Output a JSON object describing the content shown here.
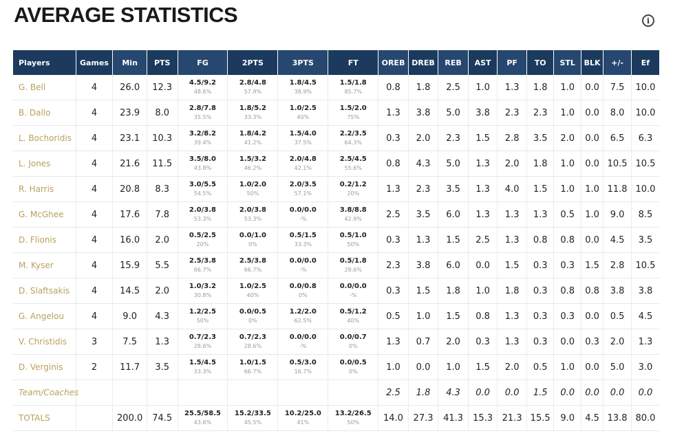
{
  "page": {
    "title": "AVERAGE STATISTICS",
    "info_icon": "info-icon"
  },
  "table": {
    "columns": [
      "Players",
      "Games",
      "Min",
      "PTS",
      "FG",
      "2PTS",
      "3PTS",
      "FT",
      "OREB",
      "DREB",
      "REB",
      "AST",
      "PF",
      "TO",
      "STL",
      "BLK",
      "+/-",
      "Ef"
    ],
    "rows": [
      {
        "player": "G. Bell",
        "games": "4",
        "min": "26.0",
        "pts": "12.3",
        "fg": {
          "v": "4.5/9.2",
          "p": "48.6%"
        },
        "p2": {
          "v": "2.8/4.8",
          "p": "57.9%"
        },
        "p3": {
          "v": "1.8/4.5",
          "p": "38.9%"
        },
        "ft": {
          "v": "1.5/1.8",
          "p": "85.7%"
        },
        "oreb": "0.8",
        "dreb": "1.8",
        "reb": "2.5",
        "ast": "1.0",
        "pf": "1.3",
        "to": "1.8",
        "stl": "1.0",
        "blk": "0.0",
        "pm": "7.5",
        "ef": "10.0"
      },
      {
        "player": "B. Dallo",
        "games": "4",
        "min": "23.9",
        "pts": "8.0",
        "fg": {
          "v": "2.8/7.8",
          "p": "35.5%"
        },
        "p2": {
          "v": "1.8/5.2",
          "p": "33.3%"
        },
        "p3": {
          "v": "1.0/2.5",
          "p": "40%"
        },
        "ft": {
          "v": "1.5/2.0",
          "p": "75%"
        },
        "oreb": "1.3",
        "dreb": "3.8",
        "reb": "5.0",
        "ast": "3.8",
        "pf": "2.3",
        "to": "2.3",
        "stl": "1.0",
        "blk": "0.0",
        "pm": "8.0",
        "ef": "10.0"
      },
      {
        "player": "L. Bochoridis",
        "games": "4",
        "min": "23.1",
        "pts": "10.3",
        "fg": {
          "v": "3.2/8.2",
          "p": "39.4%"
        },
        "p2": {
          "v": "1.8/4.2",
          "p": "41.2%"
        },
        "p3": {
          "v": "1.5/4.0",
          "p": "37.5%"
        },
        "ft": {
          "v": "2.2/3.5",
          "p": "64.3%"
        },
        "oreb": "0.3",
        "dreb": "2.0",
        "reb": "2.3",
        "ast": "1.5",
        "pf": "2.8",
        "to": "3.5",
        "stl": "2.0",
        "blk": "0.0",
        "pm": "6.5",
        "ef": "6.3"
      },
      {
        "player": "L. Jones",
        "games": "4",
        "min": "21.6",
        "pts": "11.5",
        "fg": {
          "v": "3.5/8.0",
          "p": "43.8%"
        },
        "p2": {
          "v": "1.5/3.2",
          "p": "46.2%"
        },
        "p3": {
          "v": "2.0/4.8",
          "p": "42.1%"
        },
        "ft": {
          "v": "2.5/4.5",
          "p": "55.6%"
        },
        "oreb": "0.8",
        "dreb": "4.3",
        "reb": "5.0",
        "ast": "1.3",
        "pf": "2.0",
        "to": "1.8",
        "stl": "1.0",
        "blk": "0.0",
        "pm": "10.5",
        "ef": "10.5"
      },
      {
        "player": "R. Harris",
        "games": "4",
        "min": "20.8",
        "pts": "8.3",
        "fg": {
          "v": "3.0/5.5",
          "p": "54.5%"
        },
        "p2": {
          "v": "1.0/2.0",
          "p": "50%"
        },
        "p3": {
          "v": "2.0/3.5",
          "p": "57.1%"
        },
        "ft": {
          "v": "0.2/1.2",
          "p": "20%"
        },
        "oreb": "1.3",
        "dreb": "2.3",
        "reb": "3.5",
        "ast": "1.3",
        "pf": "4.0",
        "to": "1.5",
        "stl": "1.0",
        "blk": "1.0",
        "pm": "11.8",
        "ef": "10.0"
      },
      {
        "player": "G. McGhee",
        "games": "4",
        "min": "17.6",
        "pts": "7.8",
        "fg": {
          "v": "2.0/3.8",
          "p": "53.3%"
        },
        "p2": {
          "v": "2.0/3.8",
          "p": "53.3%"
        },
        "p3": {
          "v": "0.0/0.0",
          "p": "-%"
        },
        "ft": {
          "v": "3.8/8.8",
          "p": "42.9%"
        },
        "oreb": "2.5",
        "dreb": "3.5",
        "reb": "6.0",
        "ast": "1.3",
        "pf": "1.3",
        "to": "1.3",
        "stl": "0.5",
        "blk": "1.0",
        "pm": "9.0",
        "ef": "8.5"
      },
      {
        "player": "D. Flionis",
        "games": "4",
        "min": "16.0",
        "pts": "2.0",
        "fg": {
          "v": "0.5/2.5",
          "p": "20%"
        },
        "p2": {
          "v": "0.0/1.0",
          "p": "0%"
        },
        "p3": {
          "v": "0.5/1.5",
          "p": "33.3%"
        },
        "ft": {
          "v": "0.5/1.0",
          "p": "50%"
        },
        "oreb": "0.3",
        "dreb": "1.3",
        "reb": "1.5",
        "ast": "2.5",
        "pf": "1.3",
        "to": "0.8",
        "stl": "0.8",
        "blk": "0.0",
        "pm": "4.5",
        "ef": "3.5"
      },
      {
        "player": "M. Kyser",
        "games": "4",
        "min": "15.9",
        "pts": "5.5",
        "fg": {
          "v": "2.5/3.8",
          "p": "66.7%"
        },
        "p2": {
          "v": "2.5/3.8",
          "p": "66.7%"
        },
        "p3": {
          "v": "0.0/0.0",
          "p": "-%"
        },
        "ft": {
          "v": "0.5/1.8",
          "p": "28.6%"
        },
        "oreb": "2.3",
        "dreb": "3.8",
        "reb": "6.0",
        "ast": "0.0",
        "pf": "1.5",
        "to": "0.3",
        "stl": "0.3",
        "blk": "1.5",
        "pm": "2.8",
        "ef": "10.5"
      },
      {
        "player": "D. Slaftsakis",
        "games": "4",
        "min": "14.5",
        "pts": "2.0",
        "fg": {
          "v": "1.0/3.2",
          "p": "30.8%"
        },
        "p2": {
          "v": "1.0/2.5",
          "p": "40%"
        },
        "p3": {
          "v": "0.0/0.8",
          "p": "0%"
        },
        "ft": {
          "v": "0.0/0.0",
          "p": "-%"
        },
        "oreb": "0.3",
        "dreb": "1.5",
        "reb": "1.8",
        "ast": "1.0",
        "pf": "1.8",
        "to": "0.3",
        "stl": "0.8",
        "blk": "0.8",
        "pm": "3.8",
        "ef": "3.8"
      },
      {
        "player": "G. Angelou",
        "games": "4",
        "min": "9.0",
        "pts": "4.3",
        "fg": {
          "v": "1.2/2.5",
          "p": "50%"
        },
        "p2": {
          "v": "0.0/0.5",
          "p": "0%"
        },
        "p3": {
          "v": "1.2/2.0",
          "p": "62.5%"
        },
        "ft": {
          "v": "0.5/1.2",
          "p": "40%"
        },
        "oreb": "0.5",
        "dreb": "1.0",
        "reb": "1.5",
        "ast": "0.8",
        "pf": "1.3",
        "to": "0.3",
        "stl": "0.3",
        "blk": "0.0",
        "pm": "0.5",
        "ef": "4.5"
      },
      {
        "player": "V. Christidis",
        "games": "3",
        "min": "7.5",
        "pts": "1.3",
        "fg": {
          "v": "0.7/2.3",
          "p": "28.6%"
        },
        "p2": {
          "v": "0.7/2.3",
          "p": "28.6%"
        },
        "p3": {
          "v": "0.0/0.0",
          "p": "-%"
        },
        "ft": {
          "v": "0.0/0.7",
          "p": "0%"
        },
        "oreb": "1.3",
        "dreb": "0.7",
        "reb": "2.0",
        "ast": "0.3",
        "pf": "1.3",
        "to": "0.3",
        "stl": "0.0",
        "blk": "0.3",
        "pm": "2.0",
        "ef": "1.3"
      },
      {
        "player": "D. Verginis",
        "games": "2",
        "min": "11.7",
        "pts": "3.5",
        "fg": {
          "v": "1.5/4.5",
          "p": "33.3%"
        },
        "p2": {
          "v": "1.0/1.5",
          "p": "66.7%"
        },
        "p3": {
          "v": "0.5/3.0",
          "p": "16.7%"
        },
        "ft": {
          "v": "0.0/0.5",
          "p": "0%"
        },
        "oreb": "1.0",
        "dreb": "0.0",
        "reb": "1.0",
        "ast": "1.5",
        "pf": "2.0",
        "to": "0.5",
        "stl": "1.0",
        "blk": "0.0",
        "pm": "5.0",
        "ef": "3.0"
      }
    ],
    "team": {
      "label": "Team/Coaches",
      "oreb": "2.5",
      "dreb": "1.8",
      "reb": "4.3",
      "ast": "0.0",
      "pf": "0.0",
      "to": "1.5",
      "stl": "0.0",
      "blk": "0.0",
      "pm": "0.0",
      "ef": "0.0"
    },
    "totals": {
      "label": "TOTALS",
      "min": "200.0",
      "pts": "74.5",
      "fg": {
        "v": "25.5/58.5",
        "p": "43.6%"
      },
      "p2": {
        "v": "15.2/33.5",
        "p": "45.5%"
      },
      "p3": {
        "v": "10.2/25.0",
        "p": "41%"
      },
      "ft": {
        "v": "13.2/26.5",
        "p": "50%"
      },
      "oreb": "14.0",
      "dreb": "27.3",
      "reb": "41.3",
      "ast": "15.3",
      "pf": "21.3",
      "to": "15.5",
      "stl": "9.0",
      "blk": "4.5",
      "pm": "13.8",
      "ef": "80.0"
    }
  }
}
